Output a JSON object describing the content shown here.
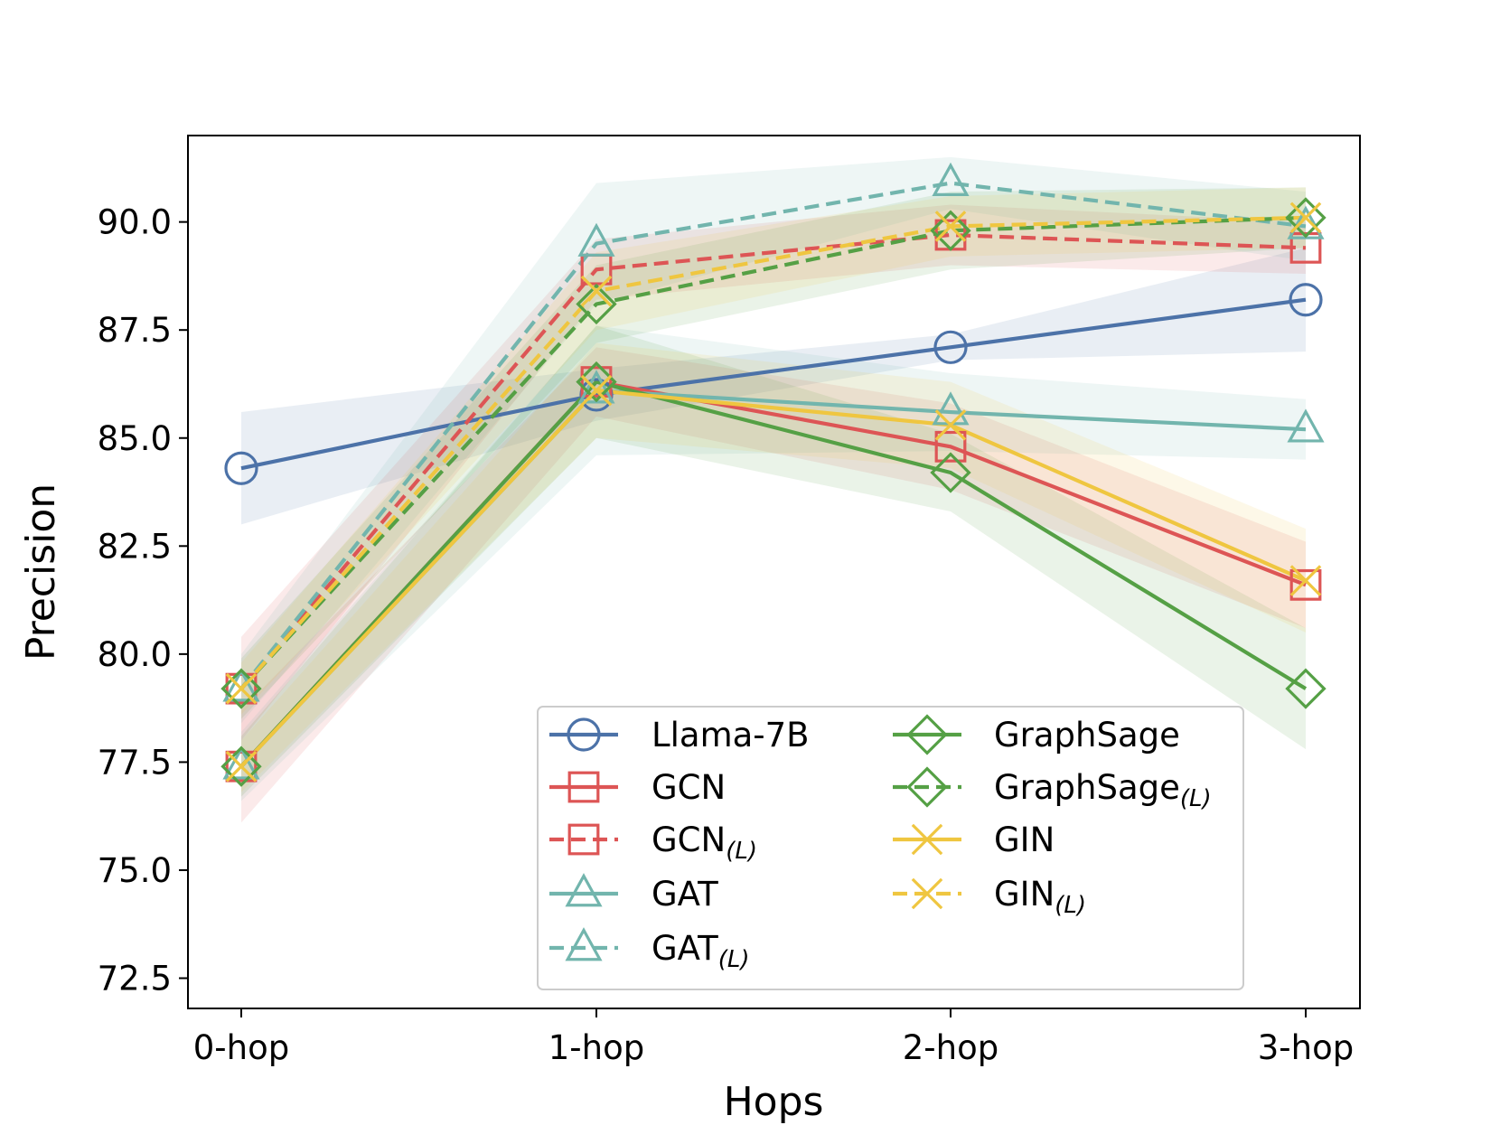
{
  "chart_data": {
    "type": "line",
    "title": "",
    "xlabel": "Hops",
    "ylabel": "Precision",
    "categories": [
      "0-hop",
      "1-hop",
      "2-hop",
      "3-hop"
    ],
    "ylim": [
      71.8,
      92.0
    ],
    "yticks": [
      72.5,
      75.0,
      77.5,
      80.0,
      82.5,
      85.0,
      87.5,
      90.0
    ],
    "ytick_labels": [
      "72.5",
      "75.0",
      "77.5",
      "80.0",
      "82.5",
      "85.0",
      "87.5",
      "90.0"
    ],
    "legend_position": "lower-right",
    "legend_columns": 2,
    "series": [
      {
        "name": "Llama-7B",
        "name_sub": "",
        "color": "#4c72a8",
        "dash": false,
        "marker": "circle",
        "values": [
          84.3,
          86.0,
          87.1,
          88.2
        ],
        "lower": [
          83.0,
          85.4,
          86.8,
          87.0
        ],
        "upper": [
          85.6,
          86.6,
          87.4,
          89.4
        ]
      },
      {
        "name": "GCN",
        "name_sub": "",
        "color": "#dd5555",
        "dash": false,
        "marker": "square",
        "values": [
          77.4,
          86.3,
          84.8,
          81.6
        ],
        "lower": [
          76.1,
          85.5,
          83.8,
          80.6
        ],
        "upper": [
          78.7,
          87.1,
          85.8,
          82.6
        ]
      },
      {
        "name": "GCN",
        "name_sub": "(L)",
        "color": "#dd5555",
        "dash": true,
        "marker": "square",
        "values": [
          79.2,
          88.9,
          89.7,
          89.4
        ],
        "lower": [
          78.0,
          88.2,
          89.0,
          88.8
        ],
        "upper": [
          80.4,
          89.6,
          90.4,
          90.0
        ]
      },
      {
        "name": "GAT",
        "name_sub": "",
        "color": "#72b5ad",
        "dash": false,
        "marker": "triangle",
        "values": [
          77.4,
          86.1,
          85.6,
          85.2
        ],
        "lower": [
          76.6,
          84.6,
          84.7,
          84.5
        ],
        "upper": [
          78.2,
          87.6,
          86.5,
          85.9
        ]
      },
      {
        "name": "GAT",
        "name_sub": "(L)",
        "color": "#72b5ad",
        "dash": true,
        "marker": "triangle",
        "values": [
          79.2,
          89.5,
          90.9,
          89.9
        ],
        "lower": [
          78.4,
          88.1,
          90.3,
          89.1
        ],
        "upper": [
          80.0,
          90.9,
          91.5,
          90.7
        ]
      },
      {
        "name": "GraphSage",
        "name_sub": "",
        "color": "#55a045",
        "dash": false,
        "marker": "diamond",
        "values": [
          77.4,
          86.3,
          84.2,
          79.2
        ],
        "lower": [
          76.7,
          85.0,
          83.3,
          77.8
        ],
        "upper": [
          78.1,
          87.6,
          85.1,
          80.6
        ]
      },
      {
        "name": "GraphSage",
        "name_sub": "(L)",
        "color": "#55a045",
        "dash": true,
        "marker": "diamond",
        "values": [
          79.2,
          88.1,
          89.8,
          90.1
        ],
        "lower": [
          78.5,
          87.2,
          88.9,
          89.4
        ],
        "upper": [
          79.9,
          89.0,
          90.7,
          90.8
        ]
      },
      {
        "name": "GIN",
        "name_sub": "",
        "color": "#efc640",
        "dash": false,
        "marker": "x",
        "values": [
          77.4,
          86.1,
          85.3,
          81.7
        ],
        "lower": [
          76.8,
          85.0,
          84.3,
          80.5
        ],
        "upper": [
          78.0,
          87.2,
          86.3,
          82.9
        ]
      },
      {
        "name": "GIN",
        "name_sub": "(L)",
        "color": "#efc640",
        "dash": true,
        "marker": "x",
        "values": [
          79.2,
          88.4,
          89.9,
          90.1
        ],
        "lower": [
          78.6,
          87.5,
          89.2,
          89.4
        ],
        "upper": [
          79.8,
          89.3,
          90.6,
          90.8
        ]
      }
    ]
  }
}
